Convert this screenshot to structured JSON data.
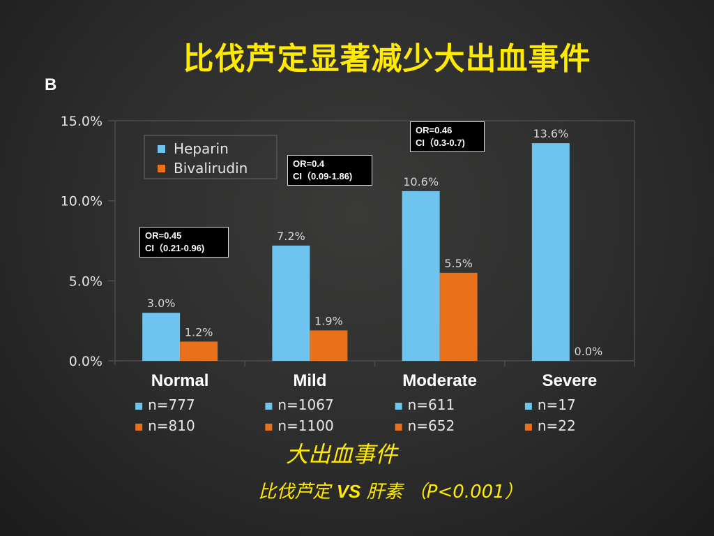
{
  "slide": {
    "title": "比伐芦定显著减少大出血事件",
    "panel_label": "B",
    "footer_title": "大出血事件",
    "footer_part1": "比伐芦定",
    "footer_vs": "VS",
    "footer_part2": "肝素 （P<0.001）"
  },
  "legend": [
    {
      "name": "Heparin",
      "color": "#6fc3ef"
    },
    {
      "name": "Bivalirudin",
      "color": "#e9711b"
    }
  ],
  "annotations": [
    {
      "line1": "OR=0.45",
      "line2": "CI（0.21-0.96)"
    },
    {
      "line1": "OR=0.4",
      "line2": "CI（0.09-1.86)"
    },
    {
      "line1": "OR=0.46",
      "line2": "CI（0.3-0.7)"
    }
  ],
  "chart_data": {
    "type": "bar",
    "categories": [
      "Normal",
      "Mild",
      "Moderate",
      "Severe"
    ],
    "series": [
      {
        "name": "Heparin",
        "values": [
          3.0,
          7.2,
          10.6,
          13.6
        ],
        "labels": [
          "3.0%",
          "7.2%",
          "10.6%",
          "13.6%"
        ],
        "n": [
          "n=777",
          "n=1067",
          "n=611",
          "n=17"
        ],
        "color": "#6fc3ef"
      },
      {
        "name": "Bivalirudin",
        "values": [
          1.2,
          1.9,
          5.5,
          0.0
        ],
        "labels": [
          "1.2%",
          "1.9%",
          "5.5%",
          "0.0%"
        ],
        "n": [
          "n=810",
          "n=1100",
          "n=652",
          "n=22"
        ],
        "color": "#e9711b"
      }
    ],
    "yticks": [
      "0.0%",
      "5.0%",
      "10.0%",
      "15.0%"
    ],
    "ylim": [
      0,
      15
    ],
    "grid": false,
    "legend_position": "top-left"
  }
}
